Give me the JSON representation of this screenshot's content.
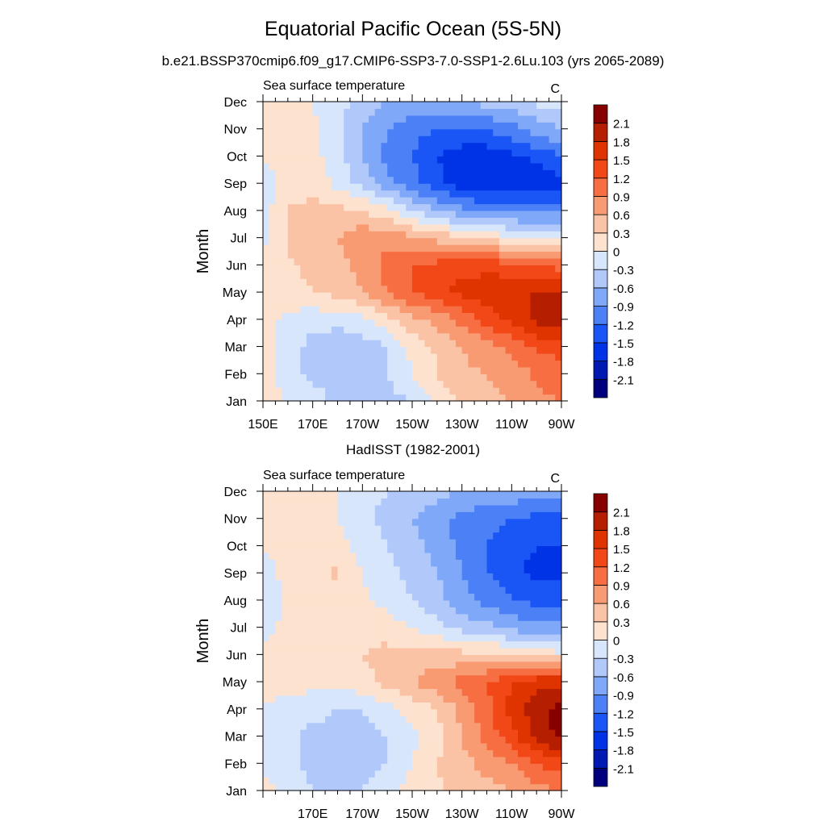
{
  "figure": {
    "title": "Equatorial Pacific Ocean (5S-5N)",
    "subtitle": "b.e21.BSSP370cmip6.f09_g17.CMIP6-SSP3-7.0-SSP1-2.6Lu.103 (yrs 2065-2089)"
  },
  "colorbar": {
    "levels": [
      -2.1,
      -1.8,
      -1.5,
      -1.2,
      -0.9,
      -0.6,
      -0.3,
      0,
      0.3,
      0.6,
      0.9,
      1.2,
      1.5,
      1.8,
      2.1
    ],
    "level_labels": [
      "-2.1",
      "-1.8",
      "-1.5",
      "-1.2",
      "-0.9",
      "-0.6",
      "-0.3",
      "0",
      "0.3",
      "0.6",
      "0.9",
      "1.2",
      "1.5",
      "1.8",
      "2.1"
    ],
    "colors": [
      "#00007f",
      "#0019b2",
      "#0033e6",
      "#1a55f5",
      "#4c80f6",
      "#80a8f8",
      "#b0c8fa",
      "#d8e6fc",
      "#fde2cf",
      "#fbc3a5",
      "#f89a72",
      "#f76e43",
      "#f24817",
      "#e03400",
      "#b51f00",
      "#870000"
    ]
  },
  "chart_data": [
    {
      "type": "heatmap",
      "name": "model",
      "title": "",
      "left_label": "Sea surface temperature",
      "units": "C",
      "ylabel": "Month",
      "xlabel": "",
      "x": [
        150,
        160,
        170,
        180,
        190,
        200,
        210,
        220,
        230,
        240,
        250,
        260,
        270
      ],
      "x_tick_values": [
        150,
        170,
        190,
        210,
        230,
        250,
        270
      ],
      "x_tick_labels": [
        "150E",
        "170E",
        "170W",
        "150W",
        "130W",
        "110W",
        "90W"
      ],
      "y_tick_labels": [
        "Jan",
        "Feb",
        "Mar",
        "Apr",
        "May",
        "Jun",
        "Jul",
        "Aug",
        "Sep",
        "Oct",
        "Nov",
        "Dec"
      ],
      "z": [
        [
          0.1,
          0.0,
          -0.1,
          -0.4,
          -0.5,
          -0.4,
          -0.3,
          0.1,
          0.3,
          0.5,
          0.6,
          0.8,
          0.9
        ],
        [
          0.1,
          -0.15,
          -0.4,
          -0.5,
          -0.45,
          -0.3,
          0.0,
          0.3,
          0.55,
          0.6,
          0.7,
          0.95,
          1.1
        ],
        [
          0.1,
          -0.15,
          -0.4,
          -0.5,
          -0.45,
          -0.3,
          0.1,
          0.35,
          0.6,
          0.8,
          1.0,
          1.25,
          1.3
        ],
        [
          0.1,
          -0.1,
          -0.2,
          -0.2,
          -0.1,
          0.2,
          0.5,
          0.7,
          1.0,
          1.3,
          1.6,
          1.9,
          2.0
        ],
        [
          0.2,
          0.2,
          0.3,
          0.4,
          0.6,
          0.9,
          1.2,
          1.4,
          1.6,
          1.7,
          1.8,
          1.8,
          1.8
        ],
        [
          0.15,
          0.25,
          0.4,
          0.5,
          0.7,
          1.0,
          1.2,
          1.3,
          1.4,
          1.4,
          1.3,
          1.2,
          1.1
        ],
        [
          -0.1,
          0.35,
          0.5,
          0.6,
          0.8,
          0.8,
          0.7,
          0.5,
          0.35,
          0.2,
          0.1,
          0.0,
          0.0
        ],
        [
          -0.2,
          0.35,
          0.4,
          0.4,
          0.3,
          0.1,
          -0.3,
          -0.6,
          -0.8,
          -1.0,
          -1.0,
          -1.0,
          -1.0
        ],
        [
          -0.1,
          0.1,
          0.2,
          -0.1,
          -0.4,
          -0.8,
          -1.1,
          -1.4,
          -1.7,
          -1.8,
          -1.8,
          -1.8,
          -1.6
        ],
        [
          0.0,
          0.1,
          0.1,
          -0.2,
          -0.6,
          -1.0,
          -1.2,
          -1.5,
          -1.7,
          -1.7,
          -1.6,
          -1.4,
          -1.2
        ],
        [
          0.05,
          0.15,
          0.05,
          -0.2,
          -0.6,
          -0.9,
          -1.1,
          -1.2,
          -1.2,
          -1.2,
          -1.0,
          -0.8,
          -0.6
        ],
        [
          0.1,
          0.1,
          0.0,
          -0.2,
          -0.4,
          -0.6,
          -0.7,
          -0.7,
          -0.6,
          -0.5,
          -0.4,
          -0.25,
          -0.1
        ]
      ]
    },
    {
      "type": "heatmap",
      "name": "observations",
      "title": "HadISST (1982-2001)",
      "left_label": "Sea surface temperature",
      "units": "C",
      "ylabel": "Month",
      "xlabel": "",
      "x": [
        150,
        160,
        170,
        180,
        190,
        200,
        210,
        220,
        230,
        240,
        250,
        260,
        270
      ],
      "x_tick_values": [
        170,
        190,
        210,
        230,
        250,
        270
      ],
      "x_tick_labels": [
        "170E",
        "170W",
        "150W",
        "130W",
        "110W",
        "90W"
      ],
      "y_tick_labels": [
        "Jan",
        "Feb",
        "Mar",
        "Apr",
        "May",
        "Jun",
        "Jul",
        "Aug",
        "Sep",
        "Oct",
        "Nov",
        "Dec"
      ],
      "z": [
        [
          0.1,
          -0.1,
          -0.3,
          -0.35,
          -0.3,
          -0.1,
          0.1,
          0.25,
          0.4,
          0.5,
          0.6,
          0.8,
          0.9
        ],
        [
          -0.1,
          -0.2,
          -0.4,
          -0.4,
          -0.4,
          -0.3,
          0.0,
          0.3,
          0.5,
          0.7,
          0.9,
          1.2,
          1.4
        ],
        [
          -0.1,
          -0.2,
          -0.4,
          -0.4,
          -0.4,
          -0.3,
          -0.1,
          0.2,
          0.6,
          1.0,
          1.4,
          1.9,
          2.2
        ],
        [
          0.0,
          -0.1,
          -0.2,
          -0.3,
          -0.3,
          -0.1,
          0.1,
          0.3,
          0.7,
          1.1,
          1.6,
          2.0,
          2.2
        ],
        [
          0.05,
          0.1,
          0.1,
          0.1,
          0.2,
          0.4,
          0.6,
          0.8,
          1.0,
          1.2,
          1.5,
          1.7,
          1.7
        ],
        [
          0.05,
          0.15,
          0.2,
          0.2,
          0.3,
          0.4,
          0.4,
          0.4,
          0.4,
          0.4,
          0.3,
          0.2,
          0.1
        ],
        [
          -0.1,
          0.1,
          0.15,
          0.15,
          0.2,
          0.15,
          0.0,
          -0.2,
          -0.4,
          -0.5,
          -0.7,
          -0.8,
          -0.8
        ],
        [
          -0.2,
          0.05,
          0.1,
          0.1,
          0.05,
          -0.1,
          -0.3,
          -0.5,
          -0.8,
          -1.0,
          -1.2,
          -1.3,
          -1.3
        ],
        [
          -0.15,
          0.1,
          0.2,
          0.35,
          0.0,
          -0.2,
          -0.4,
          -0.6,
          -0.9,
          -1.2,
          -1.4,
          -1.6,
          -1.6
        ],
        [
          0.05,
          0.1,
          0.1,
          0.1,
          -0.1,
          -0.3,
          -0.5,
          -0.7,
          -1.0,
          -1.2,
          -1.4,
          -1.5,
          -1.5
        ],
        [
          0.1,
          0.1,
          0.1,
          0.0,
          -0.2,
          -0.4,
          -0.6,
          -0.8,
          -1.0,
          -1.1,
          -1.2,
          -1.3,
          -1.3
        ],
        [
          0.1,
          0.1,
          0.1,
          0.0,
          -0.2,
          -0.3,
          -0.4,
          -0.5,
          -0.6,
          -0.7,
          -0.7,
          -0.7,
          -0.7
        ]
      ]
    }
  ]
}
